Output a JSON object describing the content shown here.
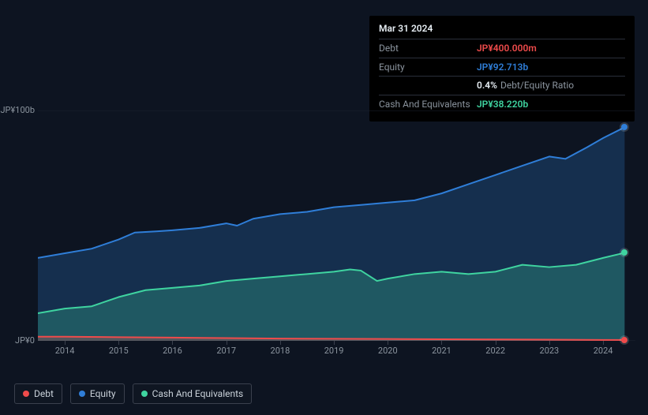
{
  "chart": {
    "type": "area",
    "background_color": "#0d1421",
    "grid_color": "#1a2230",
    "fill_opacity": 0.25,
    "line_width": 2,
    "ylim": [
      0,
      100
    ],
    "xlim": [
      2013.5,
      2024.6
    ],
    "y_ticks": [
      {
        "value": 0,
        "label": "JP¥0"
      },
      {
        "value": 100,
        "label": "JP¥100b"
      }
    ],
    "x_ticks": [
      "2014",
      "2015",
      "2016",
      "2017",
      "2018",
      "2019",
      "2020",
      "2021",
      "2022",
      "2023",
      "2024"
    ],
    "series": {
      "equity": {
        "name": "Equity",
        "color": "#2f7ed8",
        "data": [
          [
            2013.5,
            36
          ],
          [
            2014,
            38
          ],
          [
            2014.5,
            40
          ],
          [
            2015,
            44
          ],
          [
            2015.3,
            47
          ],
          [
            2015.7,
            47.5
          ],
          [
            2016,
            48
          ],
          [
            2016.5,
            49
          ],
          [
            2017,
            51
          ],
          [
            2017.2,
            50
          ],
          [
            2017.5,
            53
          ],
          [
            2018,
            55
          ],
          [
            2018.5,
            56
          ],
          [
            2019,
            58
          ],
          [
            2019.5,
            59
          ],
          [
            2020,
            60
          ],
          [
            2020.5,
            61
          ],
          [
            2021,
            64
          ],
          [
            2021.5,
            68
          ],
          [
            2022,
            72
          ],
          [
            2022.5,
            76
          ],
          [
            2023,
            80
          ],
          [
            2023.3,
            79
          ],
          [
            2023.7,
            84
          ],
          [
            2024,
            88
          ],
          [
            2024.4,
            92.7
          ]
        ]
      },
      "cash": {
        "name": "Cash And Equivalents",
        "color": "#3fd4a0",
        "data": [
          [
            2013.5,
            12
          ],
          [
            2014,
            14
          ],
          [
            2014.5,
            15
          ],
          [
            2015,
            19
          ],
          [
            2015.5,
            22
          ],
          [
            2016,
            23
          ],
          [
            2016.5,
            24
          ],
          [
            2017,
            26
          ],
          [
            2017.5,
            27
          ],
          [
            2018,
            28
          ],
          [
            2018.5,
            29
          ],
          [
            2019,
            30
          ],
          [
            2019.3,
            31
          ],
          [
            2019.5,
            30.5
          ],
          [
            2019.8,
            26
          ],
          [
            2020,
            27
          ],
          [
            2020.5,
            29
          ],
          [
            2021,
            30
          ],
          [
            2021.5,
            29
          ],
          [
            2022,
            30
          ],
          [
            2022.5,
            33
          ],
          [
            2023,
            32
          ],
          [
            2023.5,
            33
          ],
          [
            2024,
            36
          ],
          [
            2024.4,
            38.2
          ]
        ]
      },
      "debt": {
        "name": "Debt",
        "color": "#ef4b4b",
        "data": [
          [
            2013.5,
            1.8
          ],
          [
            2014,
            1.8
          ],
          [
            2015,
            1.6
          ],
          [
            2016,
            1.4
          ],
          [
            2017,
            1.2
          ],
          [
            2018,
            1.0
          ],
          [
            2019,
            0.9
          ],
          [
            2020,
            0.8
          ],
          [
            2021,
            0.7
          ],
          [
            2022,
            0.6
          ],
          [
            2023,
            0.5
          ],
          [
            2024,
            0.4
          ],
          [
            2024.4,
            0.4
          ]
        ]
      }
    },
    "marker_x": 2024.4,
    "marker_radius": 4
  },
  "tooltip": {
    "title": "Mar 31 2024",
    "rows": [
      {
        "label": "Debt",
        "value": "JP¥400.000m",
        "color": "#ef4b4b"
      },
      {
        "label": "Equity",
        "value": "JP¥92.713b",
        "color": "#2f7ed8"
      },
      {
        "label": "",
        "value": "0.4%",
        "note": "Debt/Equity Ratio",
        "color": "#e6edf3"
      },
      {
        "label": "Cash And Equivalents",
        "value": "JP¥38.220b",
        "color": "#3fd4a0"
      }
    ]
  },
  "legend": [
    {
      "name": "Debt",
      "key": "debt"
    },
    {
      "name": "Equity",
      "key": "equity"
    },
    {
      "name": "Cash And Equivalents",
      "key": "cash"
    }
  ],
  "fonts": {
    "tooltip": 12,
    "axis": 11,
    "legend": 12
  }
}
